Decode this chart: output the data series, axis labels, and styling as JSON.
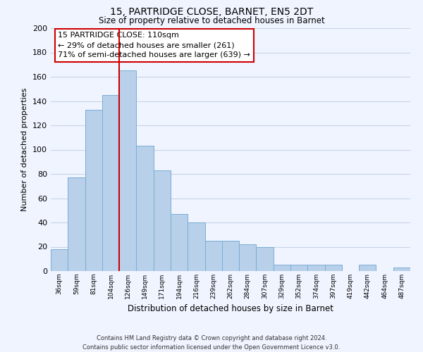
{
  "title1": "15, PARTRIDGE CLOSE, BARNET, EN5 2DT",
  "title2": "Size of property relative to detached houses in Barnet",
  "xlabel": "Distribution of detached houses by size in Barnet",
  "ylabel": "Number of detached properties",
  "bar_labels": [
    "36sqm",
    "59sqm",
    "81sqm",
    "104sqm",
    "126sqm",
    "149sqm",
    "171sqm",
    "194sqm",
    "216sqm",
    "239sqm",
    "262sqm",
    "284sqm",
    "307sqm",
    "329sqm",
    "352sqm",
    "374sqm",
    "397sqm",
    "419sqm",
    "442sqm",
    "464sqm",
    "487sqm"
  ],
  "bar_values": [
    18,
    77,
    133,
    145,
    165,
    103,
    83,
    47,
    40,
    25,
    25,
    22,
    20,
    5,
    5,
    5,
    5,
    0,
    5,
    0,
    3
  ],
  "bar_color": "#b8d0ea",
  "bar_edge_color": "#7aadd4",
  "marker_label": "15 PARTRIDGE CLOSE: 110sqm",
  "annotation_line1": "← 29% of detached houses are smaller (261)",
  "annotation_line2": "71% of semi-detached houses are larger (639) →",
  "marker_color": "#cc0000",
  "annotation_box_color": "#ffffff",
  "annotation_box_edge": "#cc0000",
  "ylim": [
    0,
    200
  ],
  "yticks": [
    0,
    20,
    40,
    60,
    80,
    100,
    120,
    140,
    160,
    180,
    200
  ],
  "footer1": "Contains HM Land Registry data © Crown copyright and database right 2024.",
  "footer2": "Contains public sector information licensed under the Open Government Licence v3.0.",
  "bg_color": "#f0f4ff",
  "grid_color": "#c8d4e8"
}
